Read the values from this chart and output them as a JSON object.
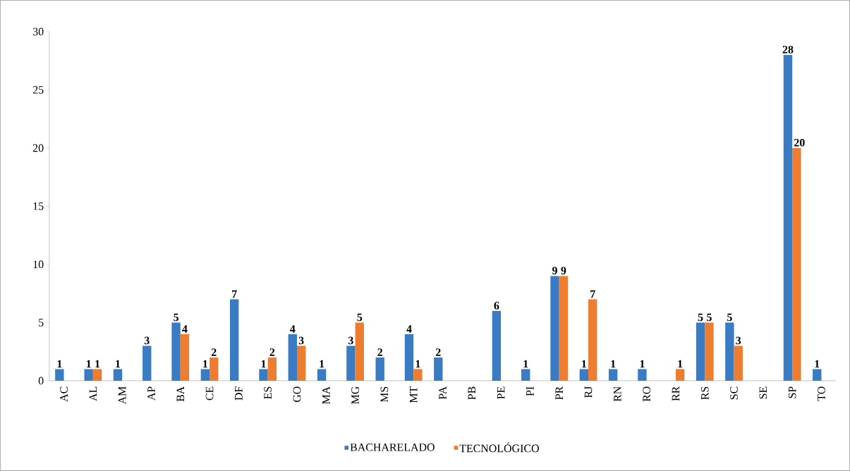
{
  "chart_data": {
    "type": "bar",
    "categories": [
      "AC",
      "AL",
      "AM",
      "AP",
      "BA",
      "CE",
      "DF",
      "ES",
      "GO",
      "MA",
      "MG",
      "MS",
      "MT",
      "PA",
      "PB",
      "PE",
      "PI",
      "PR",
      "RJ",
      "RN",
      "RO",
      "RR",
      "RS",
      "SC",
      "SE",
      "SP",
      "TO"
    ],
    "series": [
      {
        "name": "BACHARELADO",
        "color": "#3a7cc3",
        "values": [
          1,
          1,
          1,
          3,
          5,
          1,
          7,
          1,
          4,
          1,
          3,
          2,
          4,
          2,
          null,
          6,
          1,
          9,
          1,
          1,
          1,
          null,
          5,
          5,
          null,
          28,
          1
        ]
      },
      {
        "name": "TECNOLÓGICO",
        "color": "#ed7d31",
        "values": [
          null,
          1,
          null,
          null,
          4,
          2,
          null,
          2,
          3,
          null,
          5,
          null,
          1,
          null,
          null,
          null,
          null,
          9,
          7,
          null,
          null,
          1,
          5,
          3,
          null,
          20,
          null
        ]
      }
    ],
    "ylim": [
      0,
      30
    ],
    "yticks": [
      0,
      5,
      10,
      15,
      20,
      25,
      30
    ],
    "data_labels": true,
    "legend": "bottom",
    "grid": false
  }
}
